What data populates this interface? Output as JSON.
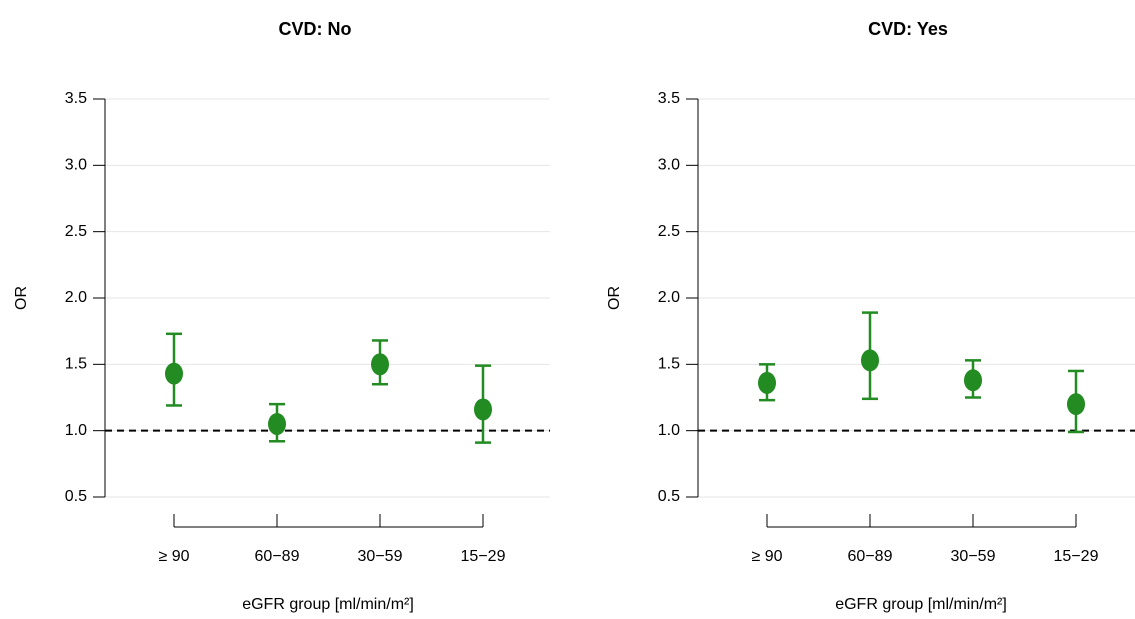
{
  "chart_data": [
    {
      "type": "errorbar",
      "title": "CVD: No",
      "x_label": "eGFR group [ml/min/m²]",
      "y_label": "OR",
      "categories": [
        "≥ 90",
        "60−89",
        "30−59",
        "15−29"
      ],
      "values": [
        1.43,
        1.05,
        1.5,
        1.16
      ],
      "lower": [
        1.19,
        0.92,
        1.35,
        0.91
      ],
      "upper": [
        1.73,
        1.2,
        1.68,
        1.49
      ],
      "color": "#228b22",
      "ylim": [
        0.5,
        3.5
      ],
      "yticks": [
        0.5,
        {
          "value": 1,
          "label": "1.0"
        },
        1.5,
        {
          "value": 2,
          "label": "2.0"
        },
        2.5,
        {
          "value": 3,
          "label": "3.0"
        },
        3.5
      ],
      "grid": true,
      "reference_line": 1
    },
    {
      "type": "errorbar",
      "title": "CVD: Yes",
      "x_label": "eGFR group [ml/min/m²]",
      "y_label": "OR",
      "categories": [
        "≥ 90",
        "60−89",
        "30−59",
        "15−29"
      ],
      "values": [
        1.36,
        1.53,
        1.38,
        1.2
      ],
      "lower": [
        1.23,
        1.24,
        1.25,
        0.99
      ],
      "upper": [
        1.5,
        1.89,
        1.53,
        1.45
      ],
      "color": "#228b22",
      "ylim": [
        0.5,
        3.5
      ],
      "yticks": [
        0.5,
        {
          "value": 1,
          "label": "1.0"
        },
        1.5,
        {
          "value": 2,
          "label": "2.0"
        },
        2.5,
        {
          "value": 3,
          "label": "3.0"
        },
        3.5
      ],
      "grid": true,
      "reference_line": 1
    }
  ]
}
